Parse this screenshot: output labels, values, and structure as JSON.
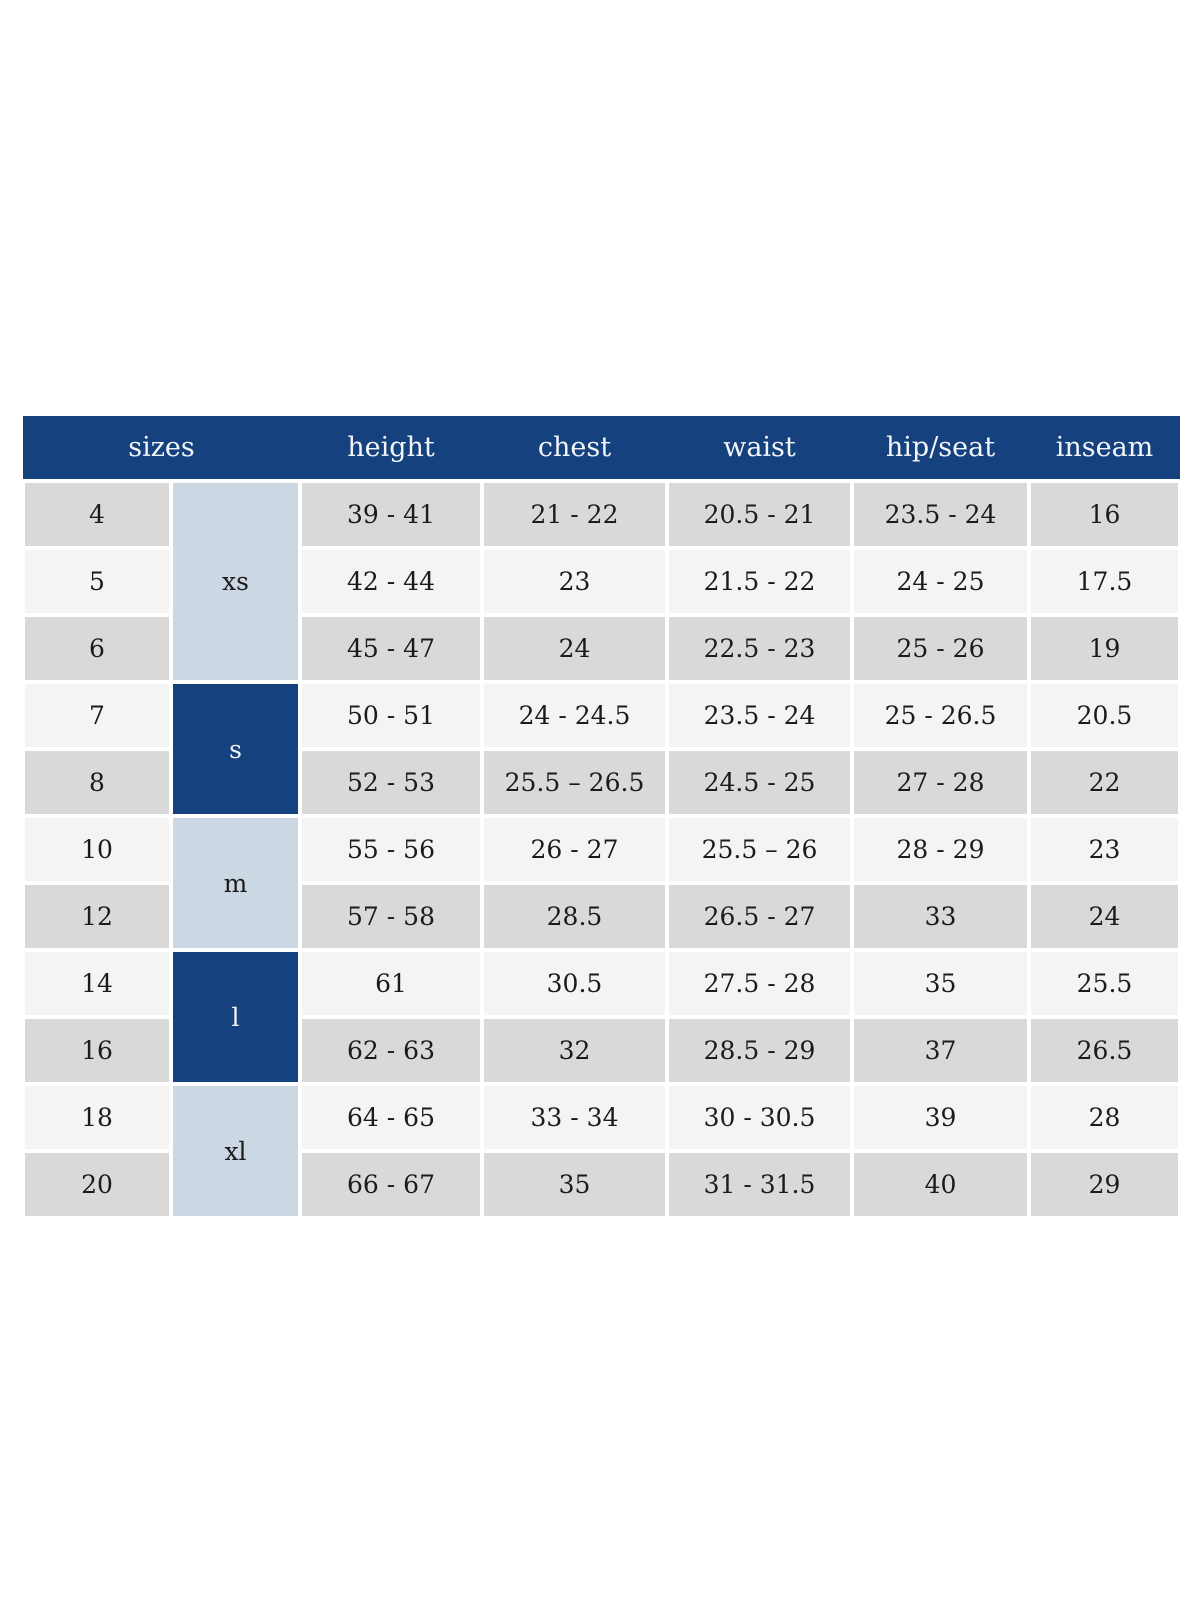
{
  "colors": {
    "header_blue": "#15417e",
    "group_dark": "#15417e",
    "group_light": "#ccd7e4",
    "row_gray": "#d9d9d9",
    "row_light": "#f4f4f4",
    "text_dark": "#1b1b1b",
    "text_light": "#f2f5f9"
  },
  "table": {
    "columns": [
      "sizes",
      "height",
      "chest",
      "waist",
      "hip/seat",
      "inseam"
    ],
    "groups": [
      {
        "label": "xs",
        "style": "light",
        "rows": [
          {
            "size": "4",
            "height": "39 - 41",
            "chest": "21 - 22",
            "waist": "20.5 - 21",
            "hip_seat": "23.5 - 24",
            "inseam": "16"
          },
          {
            "size": "5",
            "height": "42 - 44",
            "chest": "23",
            "waist": "21.5 - 22",
            "hip_seat": "24 - 25",
            "inseam": "17.5"
          },
          {
            "size": "6",
            "height": "45 - 47",
            "chest": "24",
            "waist": "22.5 - 23",
            "hip_seat": "25 - 26",
            "inseam": "19"
          }
        ]
      },
      {
        "label": "s",
        "style": "dark",
        "rows": [
          {
            "size": "7",
            "height": "50 - 51",
            "chest": "24 - 24.5",
            "waist": "23.5 - 24",
            "hip_seat": "25 - 26.5",
            "inseam": "20.5"
          },
          {
            "size": "8",
            "height": "52 - 53",
            "chest": "25.5 – 26.5",
            "waist": "24.5 - 25",
            "hip_seat": "27 - 28",
            "inseam": "22"
          }
        ]
      },
      {
        "label": "m",
        "style": "light",
        "rows": [
          {
            "size": "10",
            "height": "55 - 56",
            "chest": "26 - 27",
            "waist": "25.5 – 26",
            "hip_seat": "28 - 29",
            "inseam": "23"
          },
          {
            "size": "12",
            "height": "57 - 58",
            "chest": "28.5",
            "waist": "26.5 - 27",
            "hip_seat": "33",
            "inseam": "24"
          }
        ]
      },
      {
        "label": "l",
        "style": "dark",
        "rows": [
          {
            "size": "14",
            "height": "61",
            "chest": "30.5",
            "waist": "27.5 - 28",
            "hip_seat": "35",
            "inseam": "25.5"
          },
          {
            "size": "16",
            "height": "62 - 63",
            "chest": "32",
            "waist": "28.5 - 29",
            "hip_seat": "37",
            "inseam": "26.5"
          }
        ]
      },
      {
        "label": "xl",
        "style": "light",
        "rows": [
          {
            "size": "18",
            "height": "64 - 65",
            "chest": "33 - 34",
            "waist": "30 - 30.5",
            "hip_seat": "39",
            "inseam": "28"
          },
          {
            "size": "20",
            "height": "66 - 67",
            "chest": "35",
            "waist": "31 - 31.5",
            "hip_seat": "40",
            "inseam": "29"
          }
        ]
      }
    ]
  }
}
